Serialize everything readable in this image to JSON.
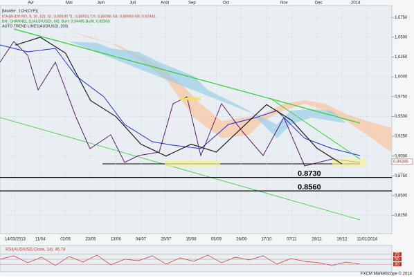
{
  "header": [
    "[Modèle : 1CH(CYP)]",
    "ICH(AUD/USD, 9, 26, 52): SL: 0,89180  TL: 0,89931  CS: 0,89286  SA: 0,89959  SB: 0,92443",
    "BH_CHANNEL (1(AUD/USD), 60): BuH: 0,94485  BuRl: 0,82003",
    "AUTO TREND LINES(AUD/USD), 200)"
  ],
  "months": [
    "Avr",
    "Mai",
    "Juin",
    "Juil",
    "Août",
    "Sep",
    "Oct",
    "Nov",
    "Dec",
    "2014"
  ],
  "chart_data": {
    "type": "line",
    "categories": [
      "14/03/2013",
      "11/04",
      "02/05",
      "23/05",
      "13/06",
      "04/07",
      "25/07",
      "15/08",
      "05/09",
      "26/09",
      "17/10",
      "07/11",
      "28/11",
      "19/12",
      "11/01/2014"
    ],
    "series": [
      {
        "name": "AUD/USD",
        "color": "#1a1a1a",
        "values": [
          1.04,
          1.05,
          1.03,
          0.97,
          0.95,
          0.915,
          0.9,
          0.915,
          0.905,
          0.935,
          0.965,
          0.945,
          0.91,
          0.89,
          null
        ]
      }
    ],
    "ylim": [
      0.802,
      1.09
    ],
    "yticks": [
      {
        "value": 1.075,
        "label": "1,0750"
      },
      {
        "value": 1.05,
        "label": "1,0500"
      },
      {
        "value": 1.025,
        "label": "1,0250"
      },
      {
        "value": 1.0,
        "label": "1,0000"
      },
      {
        "value": 0.975,
        "label": "0,9750"
      },
      {
        "value": 0.95,
        "label": "0,9500"
      },
      {
        "value": 0.925,
        "label": "0,9250"
      },
      {
        "value": 0.9,
        "label": "0,9000"
      },
      {
        "value": 0.875,
        "label": "0,8750"
      },
      {
        "value": 0.85,
        "label": "0,8500"
      },
      {
        "value": 0.825,
        "label": "0,8250"
      }
    ],
    "levels": [
      {
        "value": 0.873,
        "label": "0.8730"
      },
      {
        "value": 0.856,
        "label": "0.8560"
      }
    ],
    "last_price": {
      "value": 0.89286,
      "label": "0,89286"
    }
  },
  "rsi": {
    "title": "RSI(AUD/USD,Close, 14): 46,74",
    "ylim": [
      0,
      100
    ],
    "yticks": [
      70,
      50,
      30
    ]
  },
  "footer": "FXCM Marketscope © 2014"
}
